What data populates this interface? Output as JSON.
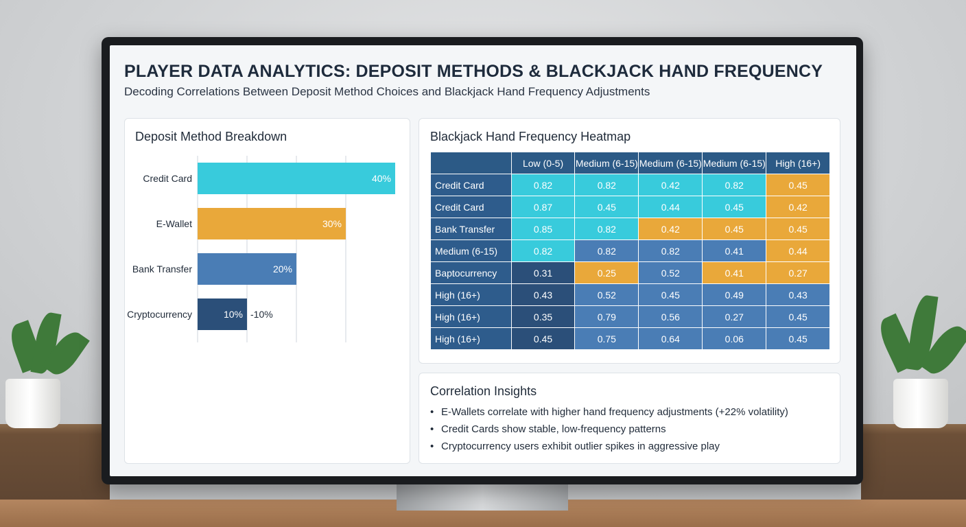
{
  "header": {
    "title": "PLAYER DATA ANALYTICS: DEPOSIT METHODS & BLACKJACK HAND FREQUENCY",
    "subtitle": "Decoding Correlations Between Deposit Method Choices and Blackjack Hand Frequency Adjustments"
  },
  "colors": {
    "cyan": "#38cbdc",
    "orange": "#e9a83a",
    "blue": "#4a7db5",
    "navy": "#2b4f79",
    "header": "#2c5a86"
  },
  "chart_data": [
    {
      "type": "bar",
      "orientation": "horizontal",
      "title": "Deposit Method Breakdown",
      "categories": [
        "Credit Card",
        "E-Wallet",
        "Bank Transfer",
        "Cryptocurrency"
      ],
      "values": [
        40,
        30,
        20,
        10
      ],
      "value_labels": [
        "40%",
        "30%",
        "20%",
        "10%"
      ],
      "extra_labels": [
        "",
        "",
        "",
        "-10%"
      ],
      "bar_colors": [
        "#38cbdc",
        "#e9a83a",
        "#4a7db5",
        "#2b4f79"
      ],
      "xlim": [
        0,
        40
      ],
      "grid": true
    },
    {
      "type": "heatmap",
      "title": "Blackjack Hand Frequency Heatmap",
      "columns": [
        "Low (0-5)",
        "Medium (6-15)",
        "Medium (6-15)",
        "Medium (6-15)",
        "High (16+)"
      ],
      "rows": [
        {
          "label": "Credit Card",
          "values": [
            "0.82",
            "0.82",
            "0.42",
            "0.82",
            "0.45"
          ],
          "colors": [
            "cyan",
            "cyan",
            "cyan",
            "cyan",
            "orange"
          ]
        },
        {
          "label": "Credit Card",
          "values": [
            "0.87",
            "0.45",
            "0.44",
            "0.45",
            "0.42"
          ],
          "colors": [
            "cyan",
            "cyan",
            "cyan",
            "cyan",
            "orange"
          ]
        },
        {
          "label": "Bank Transfer",
          "values": [
            "0.85",
            "0.82",
            "0.42",
            "0.45",
            "0.45"
          ],
          "colors": [
            "cyan",
            "cyan",
            "orange",
            "orange",
            "orange"
          ]
        },
        {
          "label": "Medium (6-15)",
          "values": [
            "0.82",
            "0.82",
            "0.82",
            "0.41",
            "0.44"
          ],
          "colors": [
            "cyan",
            "blue",
            "blue",
            "blue",
            "orange"
          ]
        },
        {
          "label": "Baptocurrency",
          "values": [
            "0.31",
            "0.25",
            "0.52",
            "0.41",
            "0.27"
          ],
          "colors": [
            "navy",
            "orange",
            "blue",
            "orange",
            "orange"
          ]
        },
        {
          "label": "High (16+)",
          "values": [
            "0.43",
            "0.52",
            "0.45",
            "0.49",
            "0.43"
          ],
          "colors": [
            "navy",
            "blue",
            "blue",
            "blue",
            "blue"
          ]
        },
        {
          "label": "High (16+)",
          "values": [
            "0.35",
            "0.79",
            "0.56",
            "0.27",
            "0.45"
          ],
          "colors": [
            "navy",
            "blue",
            "blue",
            "blue",
            "blue"
          ]
        },
        {
          "label": "High (16+)",
          "values": [
            "0.45",
            "0.75",
            "0.64",
            "0.06",
            "0.45"
          ],
          "colors": [
            "navy",
            "blue",
            "blue",
            "blue",
            "blue"
          ]
        }
      ]
    }
  ],
  "insights": {
    "title": "Correlation Insights",
    "items": [
      "E-Wallets correlate with higher hand frequency adjustments (+22% volatility)",
      "Credit Cards show stable, low-frequency patterns",
      "Cryptocurrency users exhibit outlier spikes in aggressive play"
    ]
  }
}
